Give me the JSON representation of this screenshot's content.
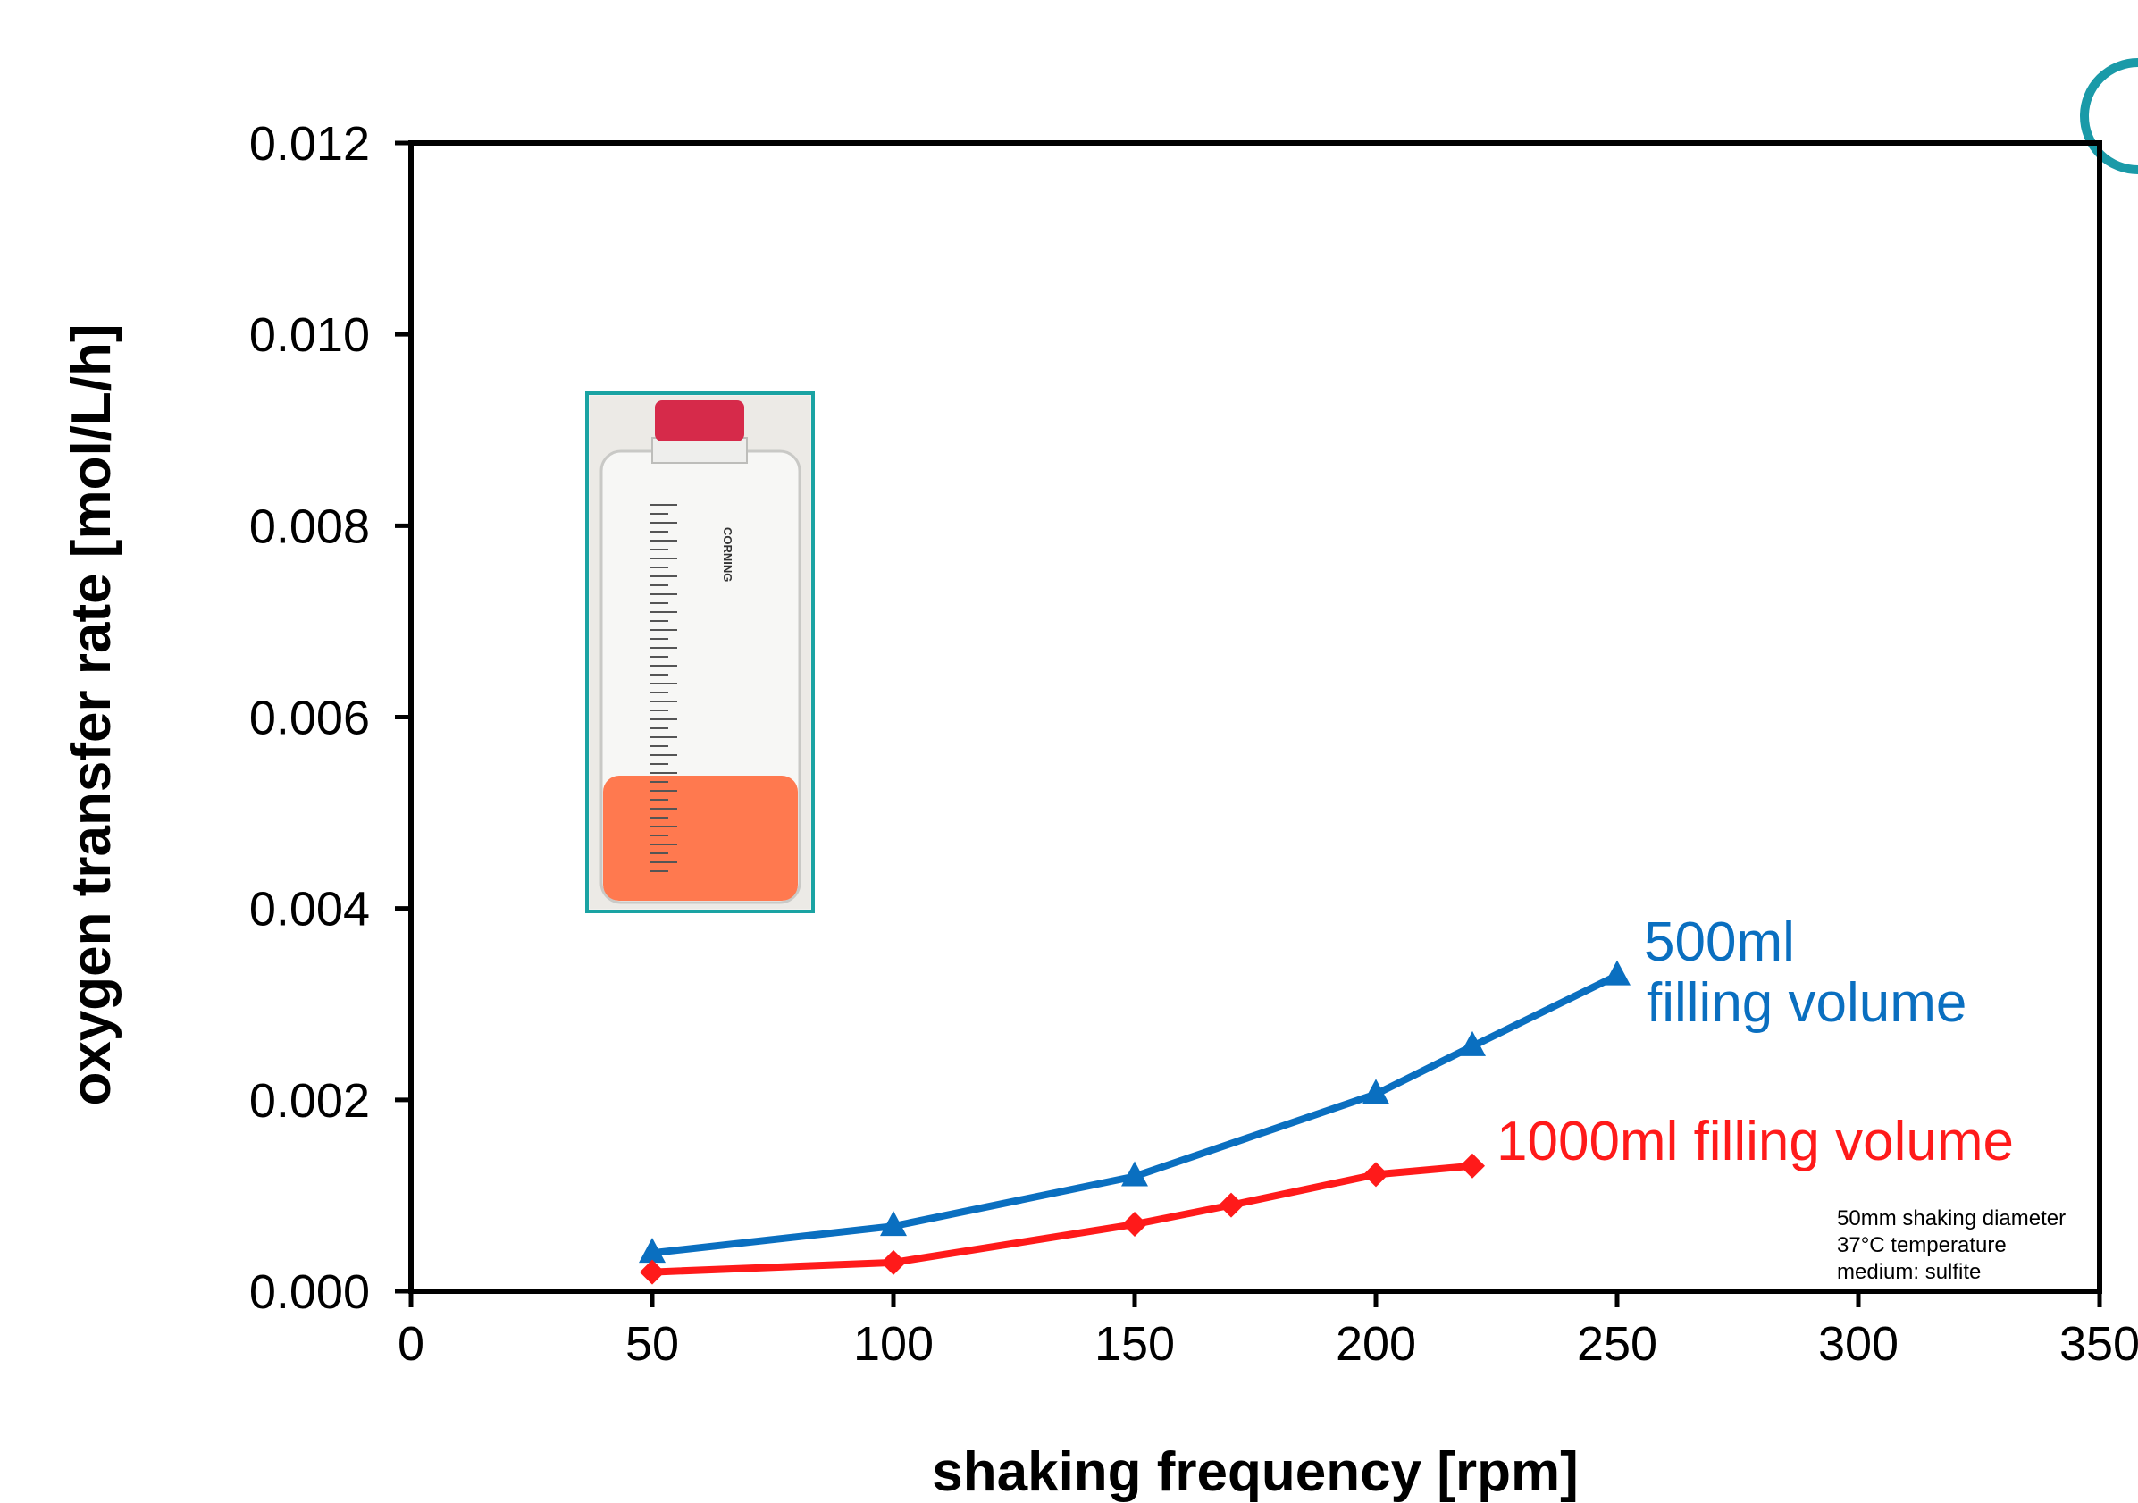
{
  "chart_data": {
    "type": "line",
    "title": "",
    "xlabel": "shaking frequency  [rpm]",
    "ylabel": "oxygen transfer rate  [mol/L/h]",
    "xlim": [
      0,
      350
    ],
    "ylim": [
      0,
      0.012
    ],
    "xticks": [
      0,
      50,
      100,
      150,
      200,
      250,
      300,
      350
    ],
    "xtick_labels": [
      "0",
      "50",
      "100",
      "150",
      "200",
      "250",
      "300",
      "350"
    ],
    "yticks": [
      0,
      0.002,
      0.004,
      0.006,
      0.008,
      0.01,
      0.012
    ],
    "ytick_labels": [
      "0.000",
      "0.002",
      "0.004",
      "0.006",
      "0.008",
      "0.010",
      "0.012"
    ],
    "grid": false,
    "series": [
      {
        "name": "500ml filling volume",
        "label_lines": [
          "500ml",
          "filling volume"
        ],
        "color": "#0a6fc0",
        "marker": "triangle",
        "x": [
          50,
          100,
          150,
          200,
          220,
          250
        ],
        "y": [
          0.0004,
          0.00068,
          0.0012,
          0.00206,
          0.00256,
          0.0033
        ]
      },
      {
        "name": "1000ml filling volume",
        "label_lines": [
          "1000ml filling volume"
        ],
        "color": "#ff1a1a",
        "marker": "diamond",
        "x": [
          50,
          100,
          150,
          170,
          200,
          220
        ],
        "y": [
          0.0002,
          0.0003,
          0.0007,
          0.0009,
          0.00122,
          0.00131
        ]
      }
    ],
    "annotations": [
      "50mm shaking diameter",
      "37°C temperature",
      "medium: sulfite"
    ]
  },
  "inset_photo": {
    "description_icon": "roller-bottle-photo",
    "frame_color": "#1aa3a3",
    "cap_color": "#d62a4a",
    "liquid_color": "#ff6a3d",
    "brand_text": "CORNING"
  },
  "corner_mark_color": "#1a9aa8"
}
